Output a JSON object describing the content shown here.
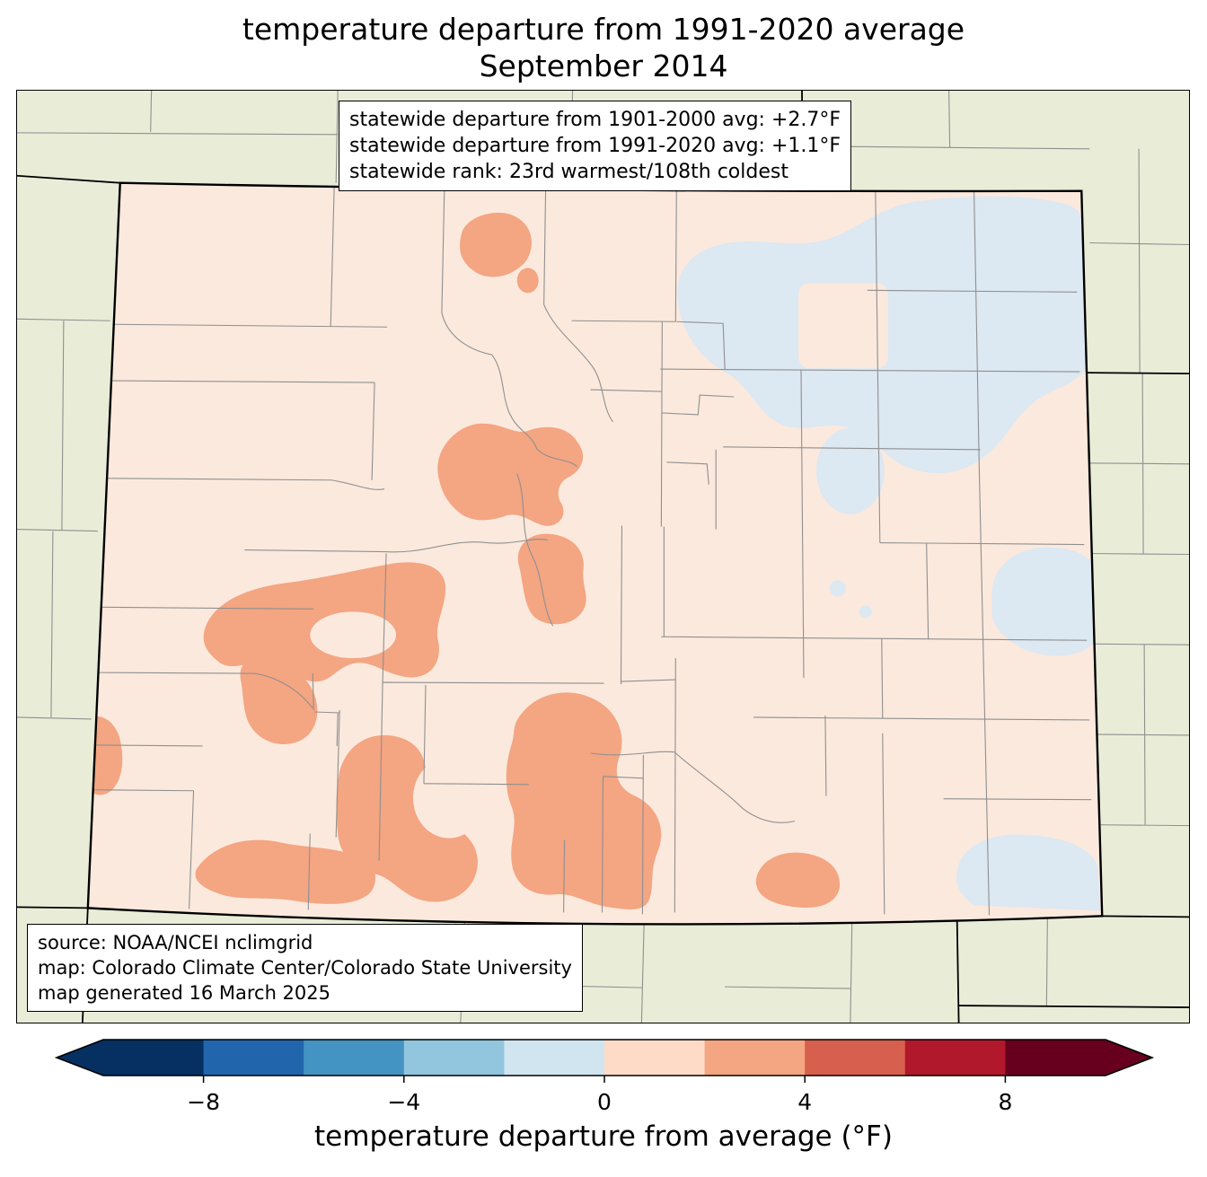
{
  "title": {
    "line1": "temperature departure from 1991-2020 average",
    "line2": "September 2014"
  },
  "stats_box": {
    "lines": [
      "statewide departure from 1901-2000 avg: +2.7°F",
      "statewide departure from 1991-2020 avg: +1.1°F",
      "statewide rank: 23rd warmest/108th coldest"
    ]
  },
  "source_box": {
    "lines": [
      "source: NOAA/NCEI nclimgrid",
      "map: Colorado Climate Center/Colorado State University",
      "map generated 16 March 2025"
    ]
  },
  "colorbar": {
    "label": "temperature departure from average (°F)",
    "range": [
      -10,
      10
    ],
    "ticks": [
      {
        "value": -8,
        "label": "−8"
      },
      {
        "value": -4,
        "label": "−4"
      },
      {
        "value": 0,
        "label": "0"
      },
      {
        "value": 4,
        "label": "4"
      },
      {
        "value": 8,
        "label": "8"
      }
    ],
    "segments": [
      "#053061",
      "#2166ac",
      "#4393c3",
      "#92c5de",
      "#d1e5f0",
      "#fddbc7",
      "#f4a582",
      "#d6604d",
      "#b2182b",
      "#67001f"
    ],
    "under_color": "#053061",
    "over_color": "#67001f",
    "outline_color": "#000000"
  },
  "map": {
    "region": "Colorado",
    "outside_fill": "#e9edd8",
    "base_fill": "#fbe9dd",
    "warm_fill": "#f4a582",
    "cool_fill": "#dce8f2",
    "county_line_color": "#8f8f8f",
    "state_line_color": "#000000"
  },
  "map_data": {
    "type": "temperature-anomaly-map",
    "region": "Colorado (with surrounding states shown in beige)",
    "variable": "temperature departure from 1991-2020 average (°F)",
    "period": "September 2014",
    "statewide_departure_from_1901_2000_avg_F": 2.7,
    "statewide_departure_from_1991_2020_avg_F": 1.1,
    "statewide_rank": "23rd warmest/108th coldest",
    "anomaly_bins_F": {
      "most_of_state": [
        0,
        2
      ],
      "warm_patches": [
        2,
        4
      ],
      "cool_patches": [
        -2,
        0
      ]
    },
    "warm_areas": "west-central mountains, central mountains, south-central and southern Colorado, small blob in north-central",
    "cool_areas": "northeastern plains, east-central border area, southeastern corner area"
  }
}
